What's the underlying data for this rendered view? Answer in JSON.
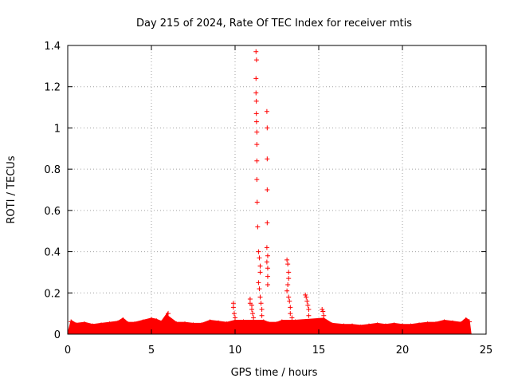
{
  "chart_data": {
    "type": "scatter",
    "title": "Day 215 of 2024, Rate Of TEC Index for receiver mtis",
    "xlabel": "GPS time / hours",
    "ylabel": "ROTI / TECUs",
    "xlim": [
      0,
      25
    ],
    "ylim": [
      0,
      1.4
    ],
    "xticks": [
      0,
      5,
      10,
      15,
      20,
      25
    ],
    "xtick_labels": [
      "0",
      "5",
      "10",
      "15",
      "20",
      "25"
    ],
    "yticks": [
      0,
      0.2,
      0.4,
      0.6,
      0.8,
      1,
      1.2,
      1.4
    ],
    "ytick_labels": [
      "0",
      "0.2",
      "0.4",
      "0.6",
      "0.8",
      "1",
      "1.2",
      "1.4"
    ],
    "grid": true,
    "marker": "+",
    "marker_color": "#ff0000",
    "series": [
      {
        "points": [
          [
            0.2,
            0.06
          ],
          [
            0.5,
            0.045
          ],
          [
            1.0,
            0.05
          ],
          [
            1.5,
            0.04
          ],
          [
            2.0,
            0.045
          ],
          [
            2.5,
            0.05
          ],
          [
            3.0,
            0.055
          ],
          [
            3.3,
            0.07
          ],
          [
            3.6,
            0.05
          ],
          [
            4.0,
            0.05
          ],
          [
            4.5,
            0.06
          ],
          [
            5.0,
            0.07
          ],
          [
            5.3,
            0.065
          ],
          [
            5.6,
            0.055
          ],
          [
            6.0,
            0.1
          ],
          [
            6.0,
            0.08
          ],
          [
            6.5,
            0.05
          ],
          [
            7.0,
            0.05
          ],
          [
            7.5,
            0.045
          ],
          [
            8.0,
            0.045
          ],
          [
            8.5,
            0.06
          ],
          [
            9.0,
            0.055
          ],
          [
            9.5,
            0.05
          ],
          [
            9.9,
            0.15
          ],
          [
            9.9,
            0.13
          ],
          [
            9.95,
            0.1
          ],
          [
            10.0,
            0.08
          ],
          [
            10.0,
            0.06
          ],
          [
            10.5,
            0.06
          ],
          [
            10.9,
            0.17
          ],
          [
            10.9,
            0.15
          ],
          [
            11.0,
            0.14
          ],
          [
            11.0,
            0.12
          ],
          [
            11.05,
            0.1
          ],
          [
            11.1,
            0.08
          ],
          [
            11.25,
            1.37
          ],
          [
            11.28,
            1.33
          ],
          [
            11.25,
            1.24
          ],
          [
            11.25,
            1.17
          ],
          [
            11.27,
            1.13
          ],
          [
            11.27,
            1.07
          ],
          [
            11.28,
            1.03
          ],
          [
            11.3,
            0.98
          ],
          [
            11.3,
            0.92
          ],
          [
            11.3,
            0.84
          ],
          [
            11.3,
            0.75
          ],
          [
            11.32,
            0.64
          ],
          [
            11.35,
            0.52
          ],
          [
            11.4,
            0.4
          ],
          [
            11.45,
            0.37
          ],
          [
            11.5,
            0.33
          ],
          [
            11.5,
            0.3
          ],
          [
            11.4,
            0.25
          ],
          [
            11.45,
            0.22
          ],
          [
            11.5,
            0.18
          ],
          [
            11.55,
            0.15
          ],
          [
            11.6,
            0.12
          ],
          [
            11.6,
            0.09
          ],
          [
            11.7,
            0.06
          ],
          [
            11.9,
            1.08
          ],
          [
            11.92,
            1.0
          ],
          [
            11.92,
            0.85
          ],
          [
            11.92,
            0.7
          ],
          [
            11.92,
            0.54
          ],
          [
            11.9,
            0.42
          ],
          [
            11.95,
            0.38
          ],
          [
            11.9,
            0.35
          ],
          [
            11.95,
            0.32
          ],
          [
            11.95,
            0.28
          ],
          [
            11.95,
            0.24
          ],
          [
            12.0,
            0.05
          ],
          [
            12.5,
            0.05
          ],
          [
            12.8,
            0.06
          ],
          [
            13.1,
            0.36
          ],
          [
            13.15,
            0.34
          ],
          [
            13.2,
            0.3
          ],
          [
            13.2,
            0.27
          ],
          [
            13.15,
            0.24
          ],
          [
            13.1,
            0.21
          ],
          [
            13.2,
            0.18
          ],
          [
            13.25,
            0.16
          ],
          [
            13.3,
            0.13
          ],
          [
            13.3,
            0.1
          ],
          [
            13.4,
            0.08
          ],
          [
            13.6,
            0.06
          ],
          [
            14.2,
            0.19
          ],
          [
            14.25,
            0.18
          ],
          [
            14.3,
            0.16
          ],
          [
            14.35,
            0.14
          ],
          [
            14.4,
            0.12
          ],
          [
            14.4,
            0.09
          ],
          [
            15.2,
            0.12
          ],
          [
            15.25,
            0.11
          ],
          [
            15.3,
            0.09
          ],
          [
            15.3,
            0.07
          ],
          [
            15.8,
            0.045
          ],
          [
            16.5,
            0.04
          ],
          [
            17.0,
            0.04
          ],
          [
            17.5,
            0.035
          ],
          [
            18.0,
            0.04
          ],
          [
            18.5,
            0.045
          ],
          [
            19.0,
            0.04
          ],
          [
            19.5,
            0.045
          ],
          [
            20.0,
            0.04
          ],
          [
            20.5,
            0.04
          ],
          [
            21.0,
            0.045
          ],
          [
            21.5,
            0.05
          ],
          [
            22.0,
            0.05
          ],
          [
            22.5,
            0.06
          ],
          [
            23.0,
            0.055
          ],
          [
            23.5,
            0.05
          ],
          [
            23.8,
            0.07
          ],
          [
            24.0,
            0.06
          ]
        ]
      }
    ]
  }
}
